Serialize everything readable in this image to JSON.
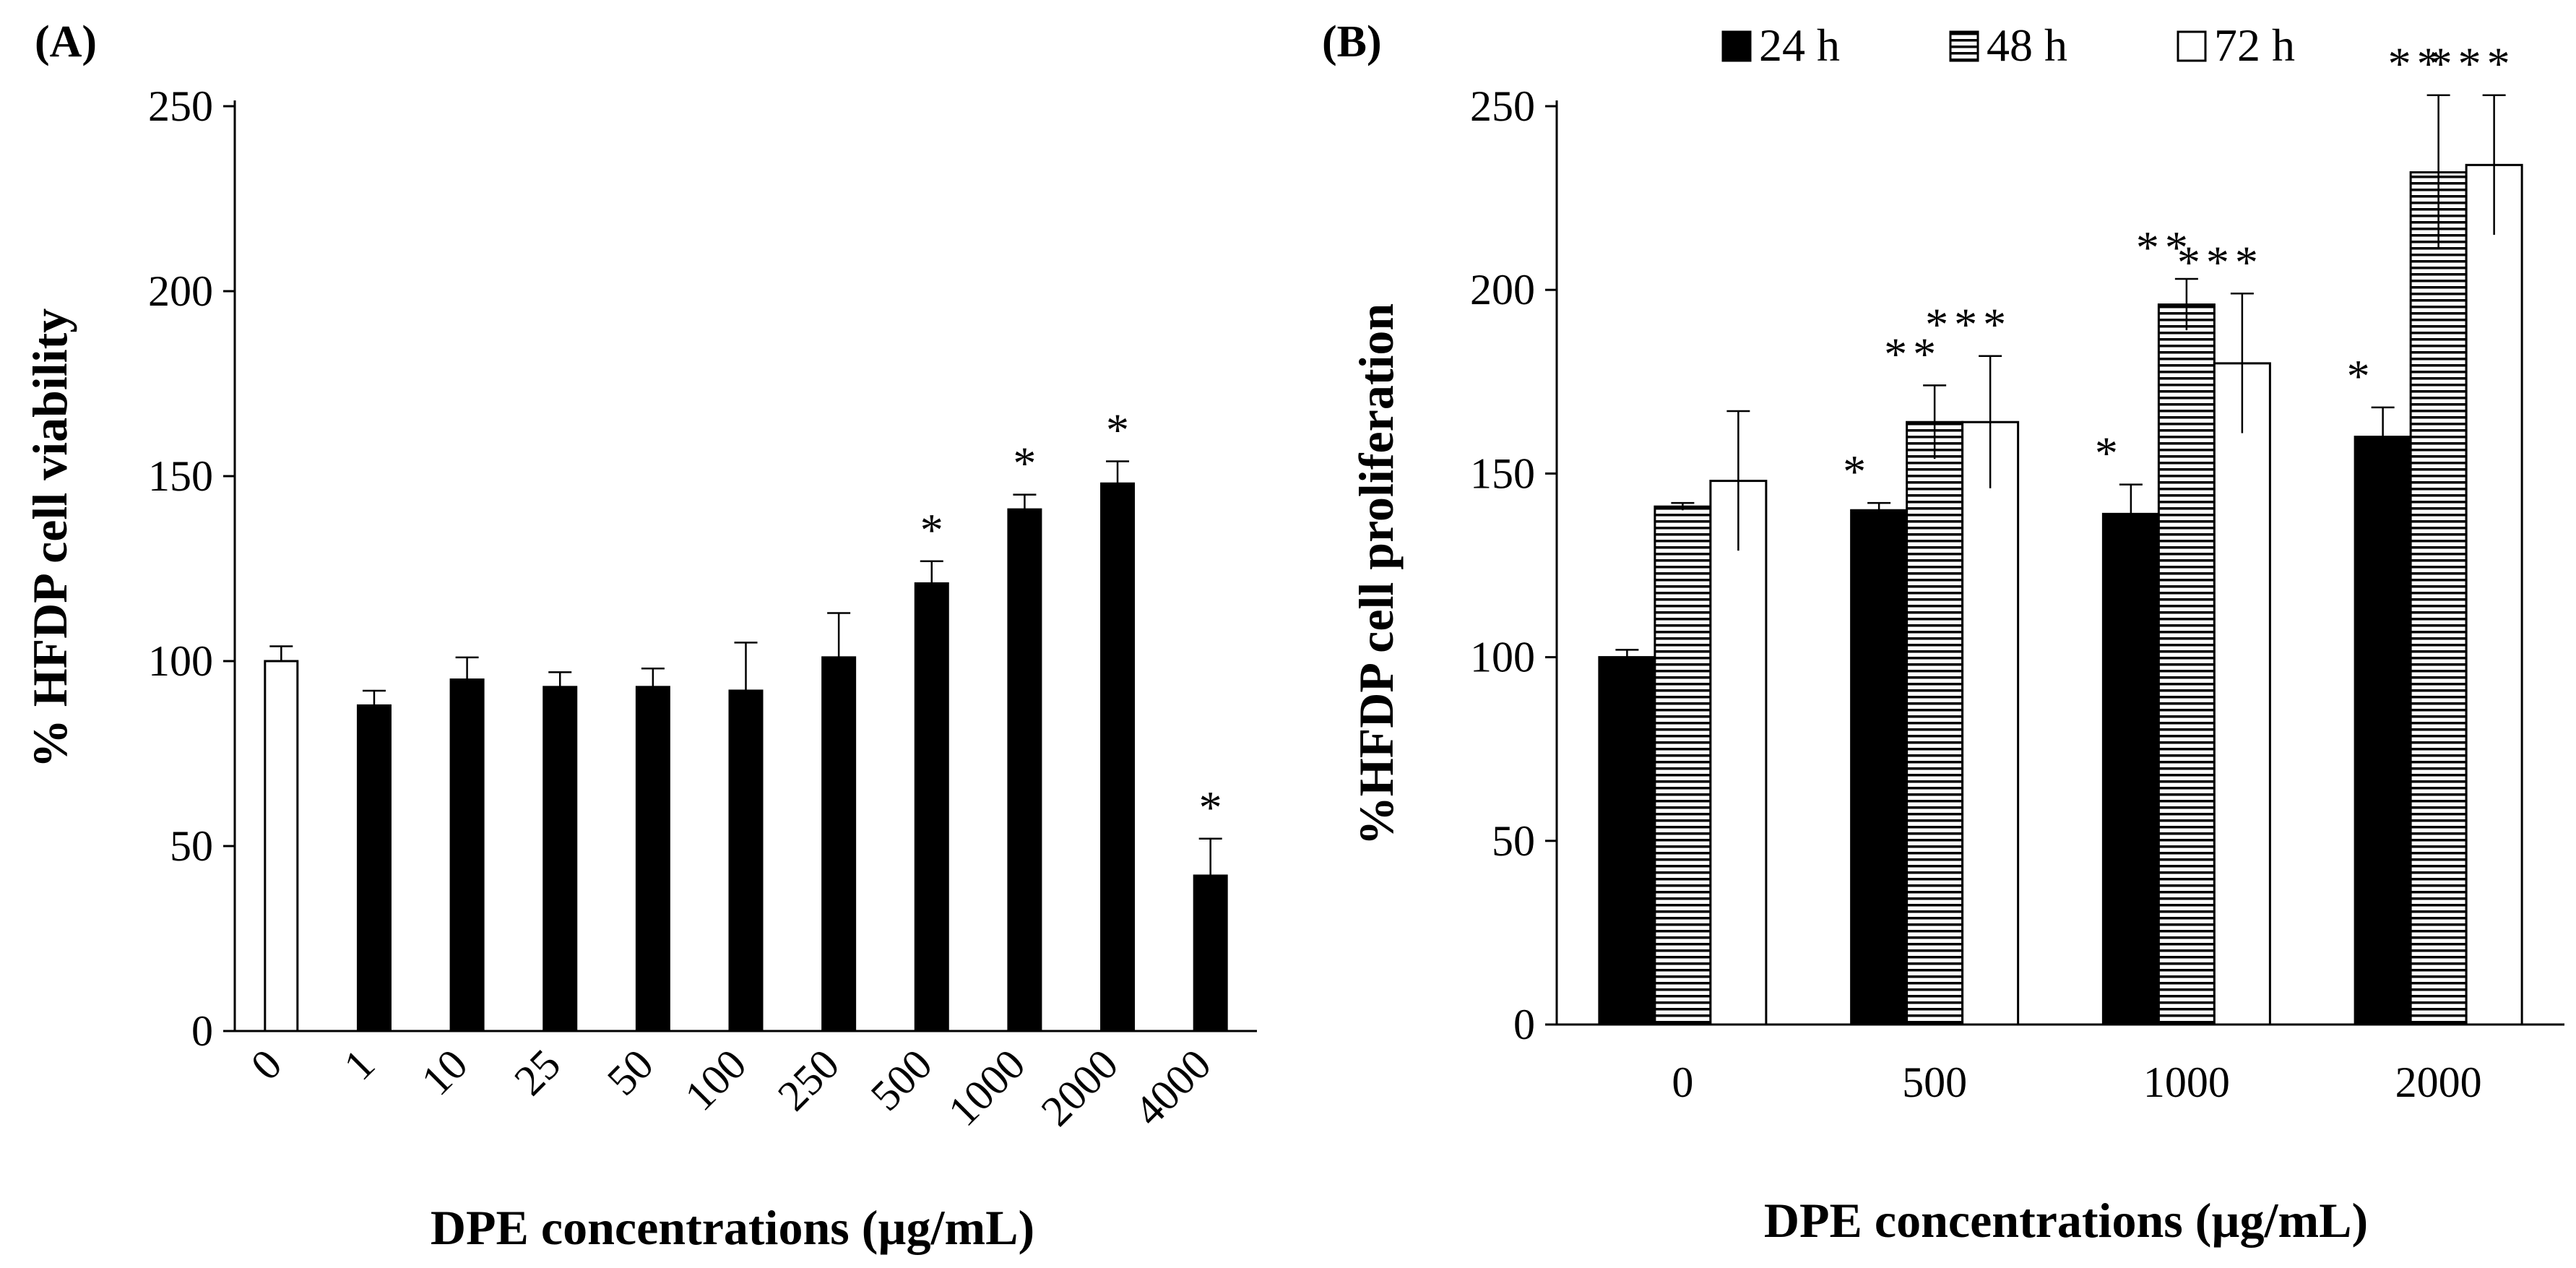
{
  "chart_data": [
    {
      "panel": "(A)",
      "type": "bar",
      "xlabel": "DPE concentrations (µg/mL)",
      "ylabel": "% HFDP cell viability",
      "ylim": [
        0,
        250
      ],
      "yticks": [
        0,
        50,
        100,
        150,
        200,
        250
      ],
      "categories": [
        "0",
        "1",
        "10",
        "25",
        "50",
        "100",
        "250",
        "500",
        "1000",
        "2000",
        "4000"
      ],
      "values": [
        100,
        88,
        95,
        93,
        93,
        92,
        101,
        121,
        141,
        148,
        42
      ],
      "errors": [
        4,
        4,
        6,
        4,
        5,
        13,
        12,
        6,
        4,
        6,
        10
      ],
      "significance": [
        "",
        "",
        "",
        "",
        "",
        "",
        "",
        "*",
        "*",
        "*",
        "*"
      ],
      "bar_fills": [
        "#ffffff",
        "#000000",
        "#000000",
        "#000000",
        "#000000",
        "#000000",
        "#000000",
        "#000000",
        "#000000",
        "#000000",
        "#000000"
      ],
      "grid": false
    },
    {
      "panel": "(B)",
      "type": "bar",
      "xlabel": "DPE concentrations (µg/mL)",
      "ylabel": "%HFDP cell proliferation",
      "ylim": [
        0,
        250
      ],
      "yticks": [
        0,
        50,
        100,
        150,
        200,
        250
      ],
      "categories": [
        "0",
        "500",
        "1000",
        "2000"
      ],
      "legend_position": "top",
      "series": [
        {
          "name": "24 h",
          "pattern": "solid-black",
          "values": [
            100,
            140,
            139,
            160
          ],
          "errors": [
            2,
            2,
            8,
            8
          ],
          "significance": [
            "",
            "*",
            "*",
            "*"
          ]
        },
        {
          "name": "48 h",
          "pattern": "horizontal-stripes",
          "values": [
            141,
            164,
            196,
            232
          ],
          "errors": [
            1,
            10,
            7,
            21
          ],
          "significance": [
            "",
            "**",
            "**",
            "**"
          ]
        },
        {
          "name": "72 h",
          "pattern": "white",
          "values": [
            148,
            164,
            180,
            234
          ],
          "errors": [
            19,
            18,
            19,
            19
          ],
          "significance": [
            "",
            "***",
            "***",
            "***"
          ]
        }
      ],
      "grid": false
    }
  ]
}
